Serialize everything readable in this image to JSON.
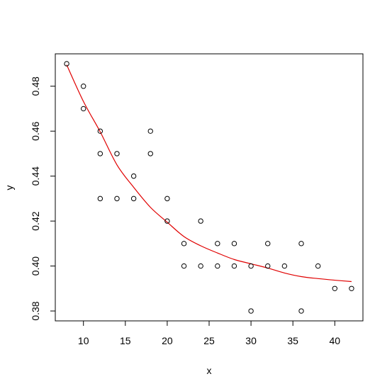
{
  "chart_data": {
    "type": "scatter",
    "title": "",
    "xlabel": "x",
    "ylabel": "y",
    "xlim": [
      6.64,
      43.36
    ],
    "ylim": [
      0.3756,
      0.4944
    ],
    "xticks": [
      10,
      15,
      20,
      25,
      30,
      35,
      40
    ],
    "yticks": [
      0.38,
      0.4,
      0.42,
      0.44,
      0.46,
      0.48
    ],
    "xtick_labels": [
      "10",
      "15",
      "20",
      "25",
      "30",
      "35",
      "40"
    ],
    "ytick_labels": [
      "0.38",
      "0.40",
      "0.42",
      "0.44",
      "0.46",
      "0.48"
    ],
    "grid": false,
    "points": [
      {
        "x": 8,
        "y": 0.49
      },
      {
        "x": 10,
        "y": 0.48
      },
      {
        "x": 10,
        "y": 0.47
      },
      {
        "x": 12,
        "y": 0.46
      },
      {
        "x": 12,
        "y": 0.45
      },
      {
        "x": 12,
        "y": 0.43
      },
      {
        "x": 14,
        "y": 0.45
      },
      {
        "x": 14,
        "y": 0.43
      },
      {
        "x": 16,
        "y": 0.44
      },
      {
        "x": 16,
        "y": 0.43
      },
      {
        "x": 18,
        "y": 0.46
      },
      {
        "x": 18,
        "y": 0.45
      },
      {
        "x": 20,
        "y": 0.43
      },
      {
        "x": 20,
        "y": 0.42
      },
      {
        "x": 22,
        "y": 0.41
      },
      {
        "x": 22,
        "y": 0.4
      },
      {
        "x": 24,
        "y": 0.42
      },
      {
        "x": 24,
        "y": 0.4
      },
      {
        "x": 26,
        "y": 0.41
      },
      {
        "x": 26,
        "y": 0.4
      },
      {
        "x": 28,
        "y": 0.41
      },
      {
        "x": 28,
        "y": 0.4
      },
      {
        "x": 30,
        "y": 0.4
      },
      {
        "x": 30,
        "y": 0.38
      },
      {
        "x": 32,
        "y": 0.41
      },
      {
        "x": 32,
        "y": 0.4
      },
      {
        "x": 34,
        "y": 0.4
      },
      {
        "x": 36,
        "y": 0.41
      },
      {
        "x": 36,
        "y": 0.38
      },
      {
        "x": 38,
        "y": 0.4
      },
      {
        "x": 40,
        "y": 0.39
      },
      {
        "x": 42,
        "y": 0.39
      }
    ],
    "fit_curve": {
      "color": "#e00000",
      "points": [
        {
          "x": 8,
          "y": 0.4895
        },
        {
          "x": 10,
          "y": 0.4732
        },
        {
          "x": 12,
          "y": 0.4597
        },
        {
          "x": 14,
          "y": 0.445
        },
        {
          "x": 16,
          "y": 0.435
        },
        {
          "x": 18,
          "y": 0.4261
        },
        {
          "x": 20,
          "y": 0.4195
        },
        {
          "x": 22,
          "y": 0.4131
        },
        {
          "x": 24,
          "y": 0.409
        },
        {
          "x": 26,
          "y": 0.4058
        },
        {
          "x": 28,
          "y": 0.4029
        },
        {
          "x": 30,
          "y": 0.401
        },
        {
          "x": 32,
          "y": 0.3991
        },
        {
          "x": 34,
          "y": 0.3969
        },
        {
          "x": 36,
          "y": 0.3953
        },
        {
          "x": 38,
          "y": 0.3944
        },
        {
          "x": 40,
          "y": 0.3937
        },
        {
          "x": 42,
          "y": 0.3931
        }
      ]
    },
    "point_color": "#000000"
  }
}
